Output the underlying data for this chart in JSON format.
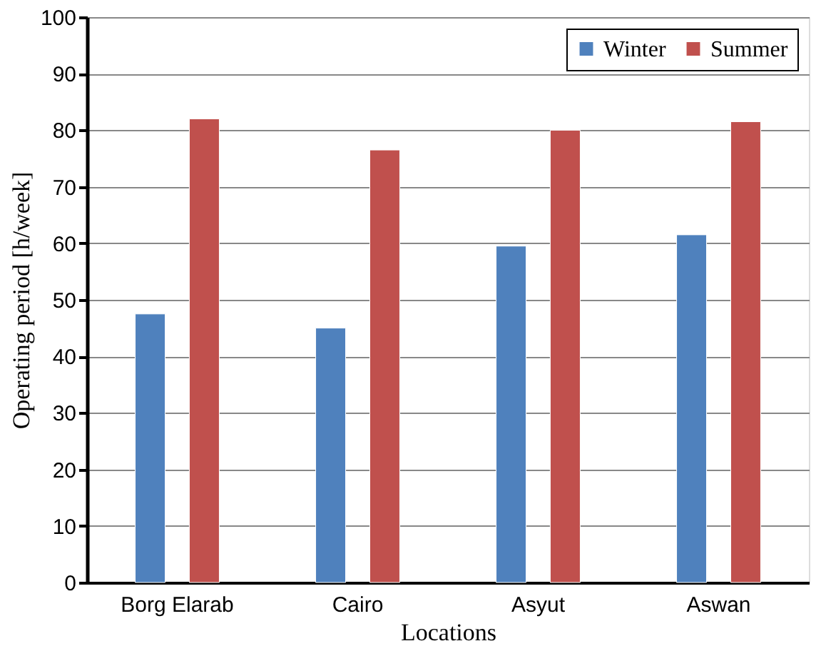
{
  "chart_data": {
    "type": "bar",
    "xlabel": "Locations",
    "ylabel": "Operating period  [h/week]",
    "categories": [
      "Borg Elarab",
      "Cairo",
      "Asyut",
      "Aswan"
    ],
    "series": [
      {
        "name": "Winter",
        "color": "#4f81bd",
        "values": [
          47.5,
          45,
          59.5,
          61.5
        ]
      },
      {
        "name": "Summer",
        "color": "#c0504d",
        "values": [
          82,
          76.5,
          80,
          81.5
        ]
      }
    ],
    "ylim": [
      0,
      100
    ],
    "yticks": [
      0,
      10,
      20,
      30,
      40,
      50,
      60,
      70,
      80,
      90,
      100
    ],
    "grid": "y",
    "legend": "top right"
  }
}
